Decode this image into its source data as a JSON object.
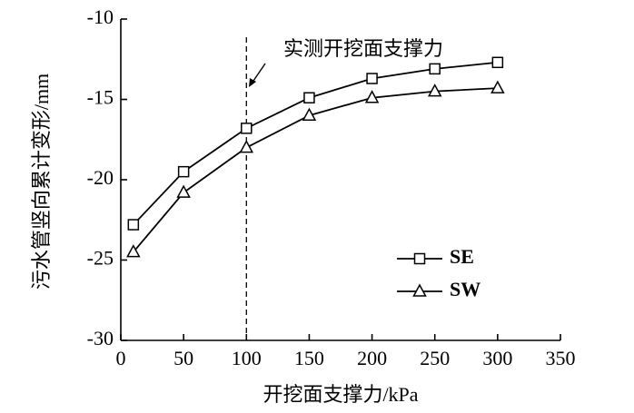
{
  "chart_data": {
    "type": "line",
    "xlabel": "开挖面支撑力/kPa",
    "ylabel": "污水管竖向累计变形/mm",
    "x": [
      10,
      50,
      100,
      150,
      200,
      250,
      300
    ],
    "series": [
      {
        "name": "SE",
        "color": "#000000",
        "marker": "square",
        "values": [
          -22.8,
          -19.5,
          -16.8,
          -14.9,
          -13.7,
          -13.1,
          -12.7
        ]
      },
      {
        "name": "SW",
        "color": "#000000",
        "marker": "triangle",
        "values": [
          -24.5,
          -20.8,
          -18.0,
          -16.0,
          -14.9,
          -14.5,
          -14.3
        ]
      }
    ],
    "xlim": [
      0,
      350
    ],
    "xticks": [
      0,
      50,
      100,
      150,
      200,
      250,
      300,
      350
    ],
    "ylim": [
      -30,
      -10
    ],
    "yticks": [
      -30,
      -25,
      -20,
      -15,
      -10
    ],
    "annotation": {
      "text": "实测开挖面支撑力",
      "x": 100
    },
    "legend": "lower right"
  }
}
